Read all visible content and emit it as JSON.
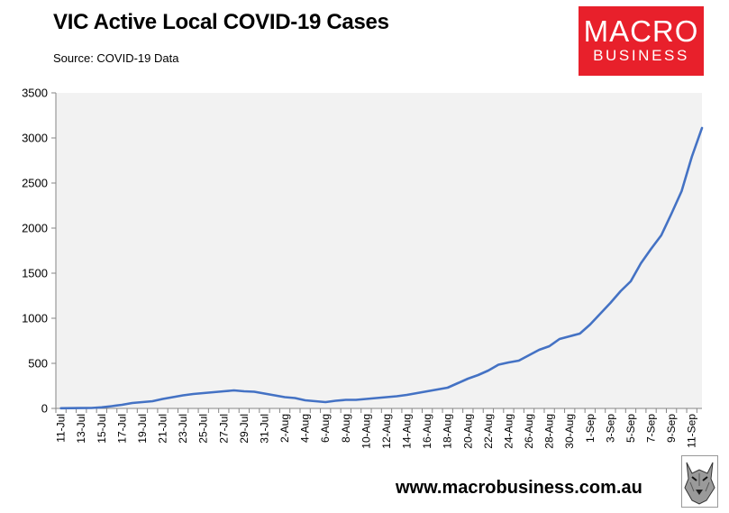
{
  "title": "VIC Active Local COVID-19 Cases",
  "subtitle": "Source: COVID-19 Data",
  "logo": {
    "line1": "MACRO",
    "line2": "BUSINESS",
    "color": "#e8202b"
  },
  "footer": {
    "url": "www.macrobusiness.com.au"
  },
  "chart_data": {
    "type": "line",
    "title": "VIC Active Local COVID-19 Cases",
    "xlabel": "",
    "ylabel": "",
    "ylim": [
      0,
      3500
    ],
    "yticks": [
      0,
      500,
      1000,
      1500,
      2000,
      2500,
      3000,
      3500
    ],
    "xticks": [
      "11-Jul",
      "13-Jul",
      "15-Jul",
      "17-Jul",
      "19-Jul",
      "21-Jul",
      "23-Jul",
      "25-Jul",
      "27-Jul",
      "29-Jul",
      "31-Jul",
      "2-Aug",
      "4-Aug",
      "6-Aug",
      "8-Aug",
      "10-Aug",
      "12-Aug",
      "14-Aug",
      "16-Aug",
      "18-Aug",
      "20-Aug",
      "22-Aug",
      "24-Aug",
      "26-Aug",
      "28-Aug",
      "30-Aug",
      "1-Sep",
      "3-Sep",
      "5-Sep",
      "7-Sep",
      "9-Sep",
      "11-Sep"
    ],
    "grid": false,
    "plot_background": "#f2f2f2",
    "line_color": "#4472c4",
    "series": [
      {
        "x": [
          "11-Jul",
          "12-Jul",
          "13-Jul",
          "14-Jul",
          "15-Jul",
          "16-Jul",
          "17-Jul",
          "18-Jul",
          "19-Jul",
          "20-Jul",
          "21-Jul",
          "22-Jul",
          "23-Jul",
          "24-Jul",
          "25-Jul",
          "26-Jul",
          "27-Jul",
          "28-Jul",
          "29-Jul",
          "30-Jul",
          "31-Jul",
          "1-Aug",
          "2-Aug",
          "3-Aug",
          "4-Aug",
          "5-Aug",
          "6-Aug",
          "7-Aug",
          "8-Aug",
          "9-Aug",
          "10-Aug",
          "11-Aug",
          "12-Aug",
          "13-Aug",
          "14-Aug",
          "15-Aug",
          "16-Aug",
          "17-Aug",
          "18-Aug",
          "19-Aug",
          "20-Aug",
          "21-Aug",
          "22-Aug",
          "23-Aug",
          "24-Aug",
          "25-Aug",
          "26-Aug",
          "27-Aug",
          "28-Aug",
          "29-Aug",
          "30-Aug",
          "31-Aug",
          "1-Sep",
          "2-Sep",
          "3-Sep",
          "4-Sep",
          "5-Sep",
          "6-Sep",
          "7-Sep",
          "8-Sep",
          "9-Sep",
          "10-Sep",
          "11-Sep",
          "12-Sep"
        ],
        "values": [
          2,
          3,
          4,
          5,
          12,
          25,
          40,
          60,
          70,
          80,
          105,
          125,
          145,
          160,
          170,
          180,
          190,
          200,
          190,
          185,
          165,
          145,
          125,
          115,
          90,
          80,
          70,
          85,
          95,
          95,
          105,
          115,
          125,
          135,
          150,
          170,
          190,
          210,
          230,
          280,
          330,
          370,
          420,
          485,
          510,
          530,
          590,
          650,
          690,
          770,
          800,
          830,
          930,
          1050,
          1170,
          1300,
          1410,
          1610,
          1770,
          1920,
          2160,
          2410,
          2790,
          3110
        ]
      }
    ]
  }
}
